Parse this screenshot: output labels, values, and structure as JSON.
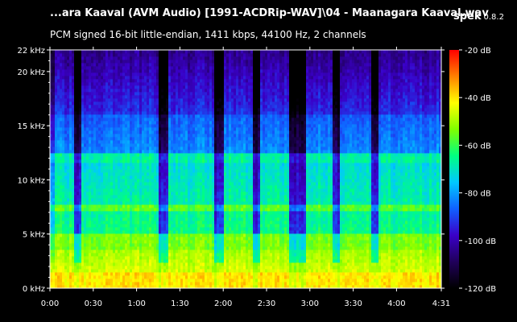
{
  "header": {
    "file_title": "...ara Kaaval (AVM Audio) [1991-ACDRip-WAV]\\04 - Maanagara Kaaval.wav",
    "app_name": "spek",
    "app_version": "0.8.2",
    "stream_info": "PCM signed 16-bit little-endian, 1411 kbps, 44100 Hz, 2 channels"
  },
  "chart_data": {
    "type": "heatmap",
    "title": "",
    "xlabel": "",
    "ylabel": "",
    "x_unit": "time (m:ss)",
    "y_unit": "kHz",
    "xlim_seconds": [
      0,
      271
    ],
    "ylim_khz": [
      0,
      22
    ],
    "colorbar_range_db": [
      -120,
      -20
    ],
    "x_ticks": [
      {
        "t": 0,
        "label": "0:00"
      },
      {
        "t": 30,
        "label": "0:30"
      },
      {
        "t": 60,
        "label": "1:00"
      },
      {
        "t": 90,
        "label": "1:30"
      },
      {
        "t": 120,
        "label": "2:00"
      },
      {
        "t": 150,
        "label": "2:30"
      },
      {
        "t": 180,
        "label": "3:00"
      },
      {
        "t": 210,
        "label": "3:30"
      },
      {
        "t": 240,
        "label": "4:00"
      },
      {
        "t": 271,
        "label": "4:31"
      }
    ],
    "y_ticks": [
      {
        "v": 0,
        "label": "0 kHz"
      },
      {
        "v": 5,
        "label": "5 kHz"
      },
      {
        "v": 10,
        "label": "10 kHz"
      },
      {
        "v": 15,
        "label": "15 kHz"
      },
      {
        "v": 20,
        "label": "20 kHz"
      },
      {
        "v": 22,
        "label": "22 kHz"
      }
    ],
    "colorbar_ticks": [
      {
        "db": -20,
        "label": "-20 dB"
      },
      {
        "db": -40,
        "label": "-40 dB"
      },
      {
        "db": -60,
        "label": "-60 dB"
      },
      {
        "db": -80,
        "label": "-80 dB"
      },
      {
        "db": -100,
        "label": "-100 dB"
      },
      {
        "db": -120,
        "label": "-120 dB"
      }
    ],
    "colormap": [
      "#000000",
      "#20005a",
      "#3a00c8",
      "#1060ff",
      "#00c8ff",
      "#00ff80",
      "#80ff00",
      "#ffff00",
      "#ff8000",
      "#ff0000"
    ],
    "quiet_segments_seconds": [
      [
        16,
        21
      ],
      [
        75,
        82
      ],
      [
        113,
        121
      ],
      [
        140,
        146
      ],
      [
        166,
        178
      ],
      [
        196,
        200
      ],
      [
        222,
        227
      ]
    ]
  }
}
